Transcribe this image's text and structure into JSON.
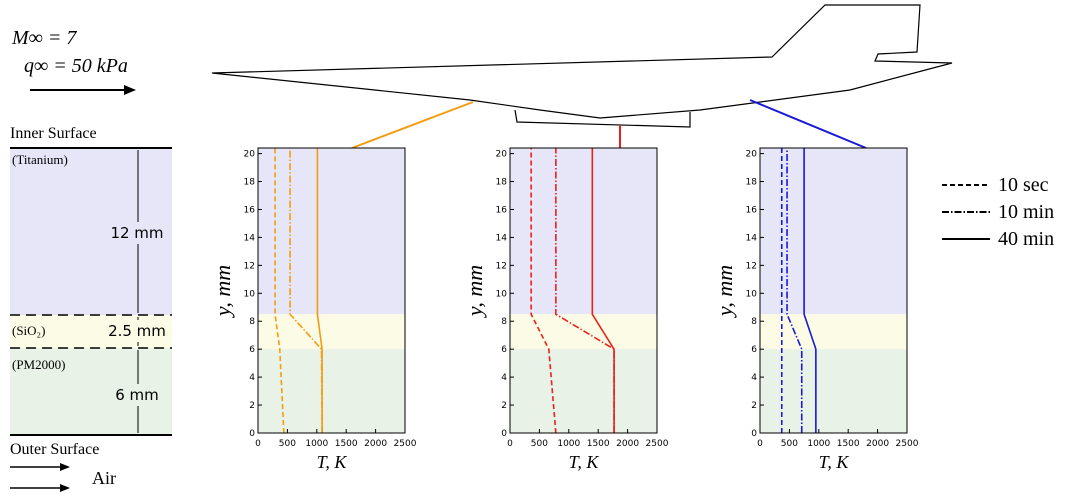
{
  "diagram": {
    "flow": [
      "M∞ = 7",
      "q∞ = 50 kPa"
    ],
    "inner_surface": "Inner Surface",
    "outer_surface": "Outer Surface",
    "air": "Air",
    "layers": [
      {
        "material": "(Titanium)",
        "thickness": "12 mm",
        "color": "#e6e6f8"
      },
      {
        "material": "(SiO₂)",
        "thickness": "2.5 mm",
        "color": "#fbfbe6"
      },
      {
        "material": "(PM2000)",
        "thickness": "6 mm",
        "color": "#e8f2e6"
      }
    ]
  },
  "chart_data": [
    {
      "type": "line",
      "xlabel": "T, K",
      "ylabel": "y, mm",
      "xlim": [
        0,
        2500
      ],
      "xticks": [
        0,
        500,
        1000,
        1500,
        2000,
        2500
      ],
      "ylim": [
        0,
        20.4
      ],
      "yticks": [
        0,
        2,
        4,
        6,
        8,
        10,
        12,
        14,
        16,
        18,
        20
      ],
      "bands": [
        {
          "from": 8.5,
          "to": 20.4,
          "color": "#e6e6f8"
        },
        {
          "from": 6,
          "to": 8.5,
          "color": "#fbfbe6"
        },
        {
          "from": 0,
          "to": 6,
          "color": "#e8f2e6"
        }
      ],
      "series": [
        {
          "name": "10 sec",
          "color": "#f39c12",
          "dash": "dashed",
          "x": [
            440,
            370,
            290,
            290
          ],
          "y": [
            0,
            6,
            8.5,
            20.4
          ]
        },
        {
          "name": "10 min",
          "color": "#f39c12",
          "dash": "dashdot",
          "x": [
            1090,
            1080,
            545,
            545
          ],
          "y": [
            0,
            6,
            8.5,
            20.4
          ]
        },
        {
          "name": "40 min",
          "color": "#f39c12",
          "dash": "solid",
          "x": [
            1090,
            1090,
            1010,
            1010
          ],
          "y": [
            0,
            6,
            8.5,
            20.4
          ]
        }
      ]
    },
    {
      "type": "line",
      "xlabel": "T, K",
      "ylabel": "y, mm",
      "xlim": [
        0,
        2500
      ],
      "xticks": [
        0,
        500,
        1000,
        1500,
        2000,
        2500
      ],
      "ylim": [
        0,
        20.4
      ],
      "yticks": [
        0,
        2,
        4,
        6,
        8,
        10,
        12,
        14,
        16,
        18,
        20
      ],
      "bands": [
        {
          "from": 8.5,
          "to": 20.4,
          "color": "#e6e6f8"
        },
        {
          "from": 6,
          "to": 8.5,
          "color": "#fbfbe6"
        },
        {
          "from": 0,
          "to": 6,
          "color": "#e8f2e6"
        }
      ],
      "series": [
        {
          "name": "10 sec",
          "color": "#e8231c",
          "dash": "dashed",
          "x": [
            780,
            660,
            360,
            360
          ],
          "y": [
            0,
            6,
            8.5,
            20.4
          ]
        },
        {
          "name": "10 min",
          "color": "#e8231c",
          "dash": "dashdot",
          "x": [
            1770,
            1770,
            780,
            780
          ],
          "y": [
            0,
            6,
            8.5,
            20.4
          ]
        },
        {
          "name": "40 min",
          "color": "#e8231c",
          "dash": "solid",
          "x": [
            1770,
            1770,
            1400,
            1400
          ],
          "y": [
            0,
            6,
            8.5,
            20.4
          ]
        }
      ]
    },
    {
      "type": "line",
      "xlabel": "T, K",
      "ylabel": "y, mm",
      "xlim": [
        0,
        2500
      ],
      "xticks": [
        0,
        500,
        1000,
        1500,
        2000,
        2500
      ],
      "ylim": [
        0,
        20.4
      ],
      "yticks": [
        0,
        2,
        4,
        6,
        8,
        10,
        12,
        14,
        16,
        18,
        20
      ],
      "bands": [
        {
          "from": 8.5,
          "to": 20.4,
          "color": "#e6e6f8"
        },
        {
          "from": 6,
          "to": 8.5,
          "color": "#fbfbe6"
        },
        {
          "from": 0,
          "to": 6,
          "color": "#e8f2e6"
        }
      ],
      "series": [
        {
          "name": "10 sec",
          "color": "#1a1ad6",
          "dash": "dashed",
          "x": [
            370,
            370,
            370,
            370
          ],
          "y": [
            0,
            6,
            8.5,
            20.4
          ]
        },
        {
          "name": "10 min",
          "color": "#1a1ad6",
          "dash": "dashdot",
          "x": [
            710,
            710,
            460,
            460
          ],
          "y": [
            0,
            6,
            8.5,
            20.4
          ]
        },
        {
          "name": "40 min",
          "color": "#1a1ad6",
          "dash": "solid",
          "x": [
            950,
            950,
            750,
            750
          ],
          "y": [
            0,
            6,
            8.5,
            20.4
          ]
        }
      ]
    }
  ]
}
